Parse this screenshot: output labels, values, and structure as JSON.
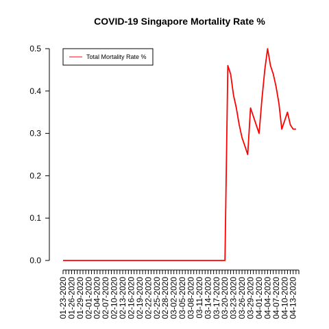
{
  "chart_data": {
    "type": "line",
    "title": "COVID-19 Singapore Mortality Rate %",
    "xlabel": "",
    "ylabel": "",
    "legend_position": "top-left",
    "grid": false,
    "ylim": [
      0,
      0.5
    ],
    "y_ticks": [
      "0.0",
      "0.1",
      "0.2",
      "0.3",
      "0.4",
      "0.5"
    ],
    "x_start": "2020-01-23",
    "x_end": "2020-04-15",
    "x_tick_labels": [
      "01-23-2020",
      "01-26-2020",
      "01-29-2020",
      "02-01-2020",
      "02-04-2020",
      "02-07-2020",
      "02-10-2020",
      "02-13-2020",
      "02-16-2020",
      "02-19-2020",
      "02-22-2020",
      "02-25-2020",
      "02-28-2020",
      "03-02-2020",
      "03-05-2020",
      "03-08-2020",
      "03-11-2020",
      "03-14-2020",
      "03-17-2020",
      "03-20-2020",
      "03-23-2020",
      "03-26-2020",
      "03-29-2020",
      "04-01-2020",
      "04-04-2020",
      "04-07-2020",
      "04-10-2020",
      "04-13-2020"
    ],
    "series": [
      {
        "name": "Total Mortality Rate %",
        "color": "#ff0000",
        "points": [
          [
            "2020-01-23",
            0
          ],
          [
            "2020-03-20",
            0
          ],
          [
            "2020-03-21",
            0.46
          ],
          [
            "2020-03-22",
            0.44
          ],
          [
            "2020-03-23",
            0.39
          ],
          [
            "2020-03-24",
            0.36
          ],
          [
            "2020-03-25",
            0.32
          ],
          [
            "2020-03-26",
            0.29
          ],
          [
            "2020-03-27",
            0.27
          ],
          [
            "2020-03-28",
            0.25
          ],
          [
            "2020-03-29",
            0.36
          ],
          [
            "2020-03-30",
            0.34
          ],
          [
            "2020-03-31",
            0.32
          ],
          [
            "2020-04-01",
            0.3
          ],
          [
            "2020-04-02",
            0.38
          ],
          [
            "2020-04-03",
            0.45
          ],
          [
            "2020-04-04",
            0.5
          ],
          [
            "2020-04-05",
            0.46
          ],
          [
            "2020-04-06",
            0.44
          ],
          [
            "2020-04-07",
            0.41
          ],
          [
            "2020-04-08",
            0.37
          ],
          [
            "2020-04-09",
            0.31
          ],
          [
            "2020-04-10",
            0.33
          ],
          [
            "2020-04-11",
            0.35
          ],
          [
            "2020-04-12",
            0.32
          ],
          [
            "2020-04-13",
            0.31
          ],
          [
            "2020-04-14",
            0.31
          ]
        ]
      }
    ]
  }
}
